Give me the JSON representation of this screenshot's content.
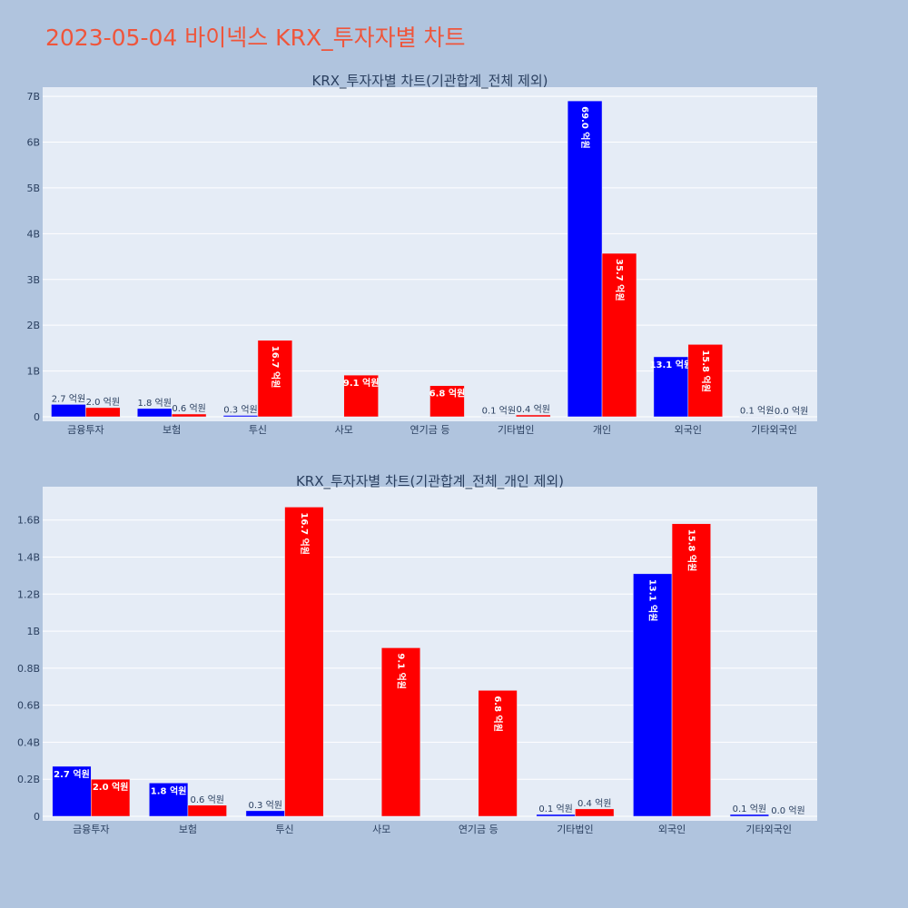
{
  "page": {
    "title": "2023-05-04 바이넥스 KRX_투자자별 차트"
  },
  "colors": {
    "series_a": "#0000ff",
    "series_b": "#ff0000",
    "plot_bg": "#e5ecf6",
    "paper_bg": "#b0c4de",
    "title": "#ef553b"
  },
  "chart_data": [
    {
      "type": "bar",
      "title": "KRX_투자자별 차트(기관합계_전체 제외)",
      "categories": [
        "금융투자",
        "보험",
        "투신",
        "사모",
        "연기금 등",
        "기타법인",
        "개인",
        "외국인",
        "기타외국인"
      ],
      "series": [
        {
          "values": [
            270000000,
            180000000,
            30000000,
            0,
            0,
            10000000,
            6900000000,
            1310000000,
            10000000
          ],
          "labels": [
            "2.7 억원",
            "1.8 억원",
            "0.3 억원",
            "",
            "",
            "0.1 억원",
            "69.0 억원",
            "13.1 억원",
            "0.1 억원"
          ]
        },
        {
          "values": [
            200000000,
            60000000,
            1670000000,
            910000000,
            680000000,
            40000000,
            3570000000,
            1580000000,
            0
          ],
          "labels": [
            "2.0 억원",
            "0.6 억원",
            "16.7 억원",
            "9.1 억원",
            "6.8 억원",
            "0.4 억원",
            "35.7 억원",
            "15.8 억원",
            "0.0 억원"
          ]
        }
      ],
      "yticks": [
        0,
        1000000000,
        2000000000,
        3000000000,
        4000000000,
        5000000000,
        6000000000,
        7000000000
      ],
      "ytick_labels": [
        "0",
        "1B",
        "2B",
        "3B",
        "4B",
        "5B",
        "6B",
        "7B"
      ],
      "ylim": [
        0,
        7200000000
      ],
      "grid": true
    },
    {
      "type": "bar",
      "title": "KRX_투자자별 차트(기관합계_전체_개인 제외)",
      "categories": [
        "금융투자",
        "보험",
        "투신",
        "사모",
        "연기금 등",
        "기타법인",
        "외국인",
        "기타외국인"
      ],
      "series": [
        {
          "values": [
            270000000,
            180000000,
            30000000,
            0,
            0,
            10000000,
            1310000000,
            10000000
          ],
          "labels": [
            "2.7 억원",
            "1.8 억원",
            "0.3 억원",
            "",
            "",
            "0.1 억원",
            "13.1 억원",
            "0.1 억원"
          ]
        },
        {
          "values": [
            200000000,
            60000000,
            1670000000,
            910000000,
            680000000,
            40000000,
            1580000000,
            0
          ],
          "labels": [
            "2.0 억원",
            "0.6 억원",
            "16.7 억원",
            "9.1 억원",
            "6.8 억원",
            "0.4 억원",
            "15.8 억원",
            "0.0 억원"
          ]
        }
      ],
      "yticks": [
        0,
        200000000,
        400000000,
        600000000,
        800000000,
        1000000000,
        1200000000,
        1400000000,
        1600000000
      ],
      "ytick_labels": [
        "0",
        "0.2B",
        "0.4B",
        "0.6B",
        "0.8B",
        "1B",
        "1.2B",
        "1.4B",
        "1.6B"
      ],
      "ylim": [
        0,
        1780000000
      ],
      "grid": true
    }
  ]
}
